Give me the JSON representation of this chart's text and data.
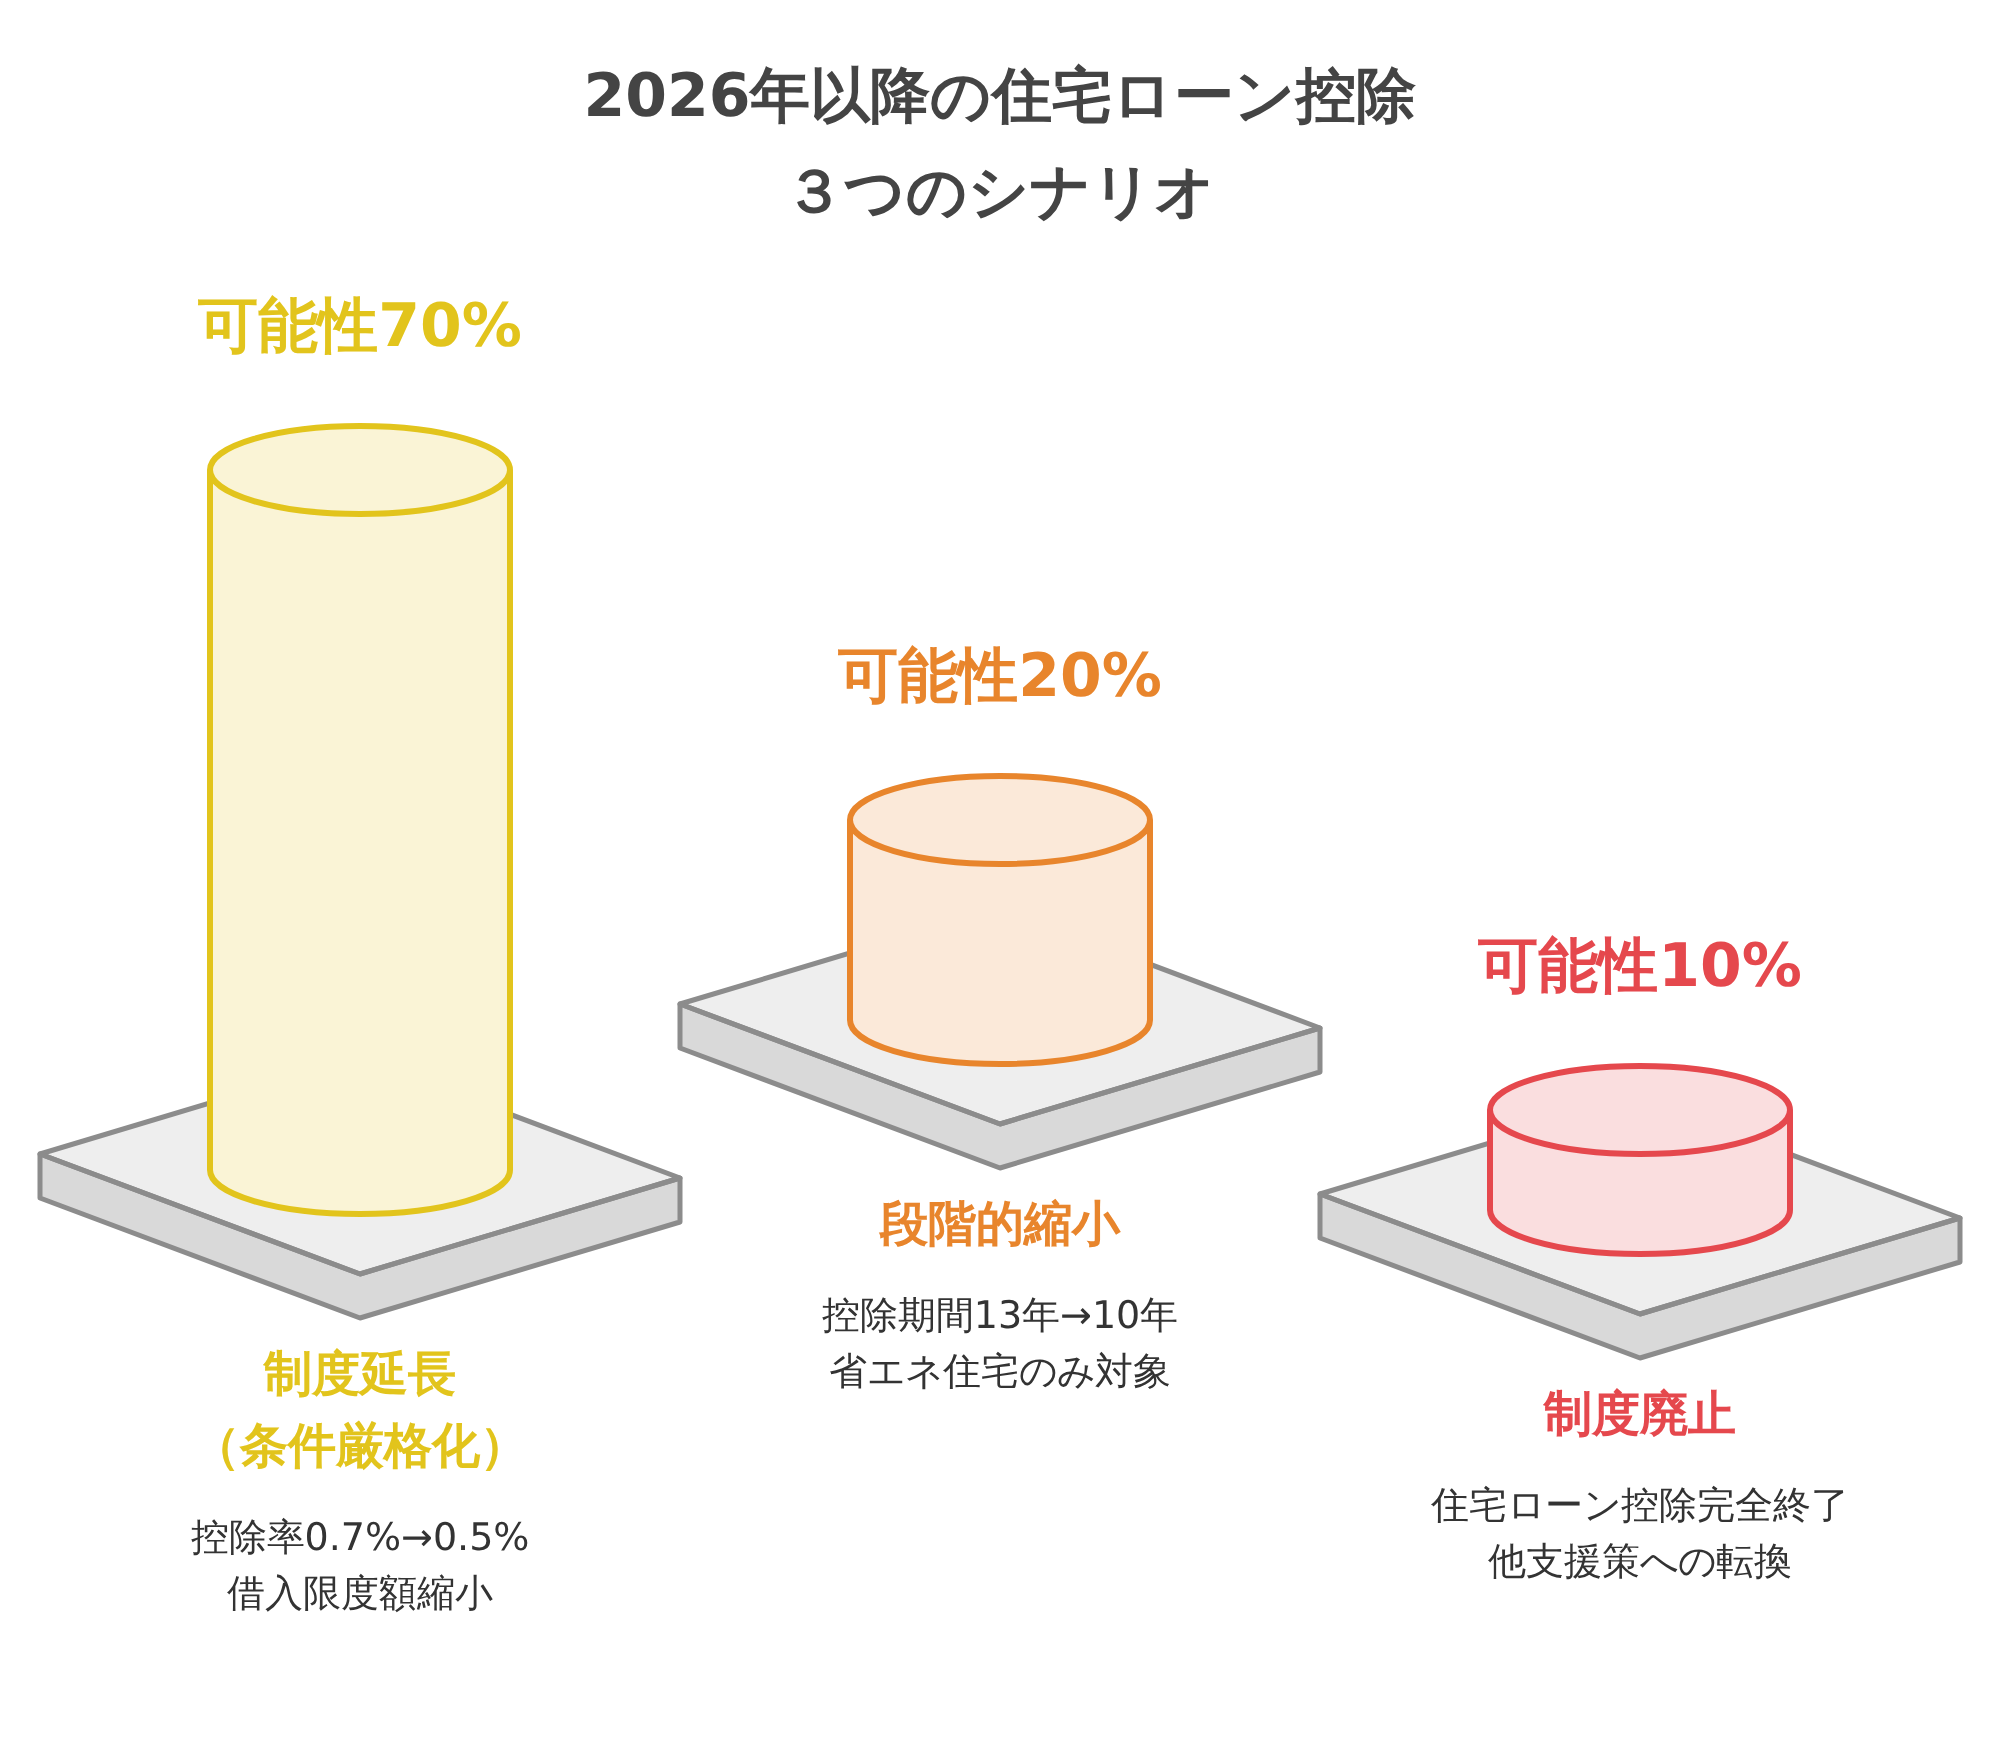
{
  "chart_data": {
    "type": "other",
    "title": "2026年以降の住宅ローン控除",
    "subtitle": "３つのシナリオ",
    "categories": [
      "制度延長（条件厳格化）",
      "段階的縮小",
      "制度廃止"
    ],
    "values": [
      70,
      20,
      10
    ],
    "colors": [
      "#e2c41c",
      "#e8852c",
      "#e5484d"
    ],
    "value_labels": [
      "可能性70%",
      "可能性20%",
      "可能性10%"
    ],
    "annotations": [
      "控除率0.7%→0.5%",
      "借入限度額縮小",
      "控除期間13年→10年",
      "省エネ住宅のみ対象",
      "住宅ローン控除完全終了",
      "他支援策への転換"
    ]
  }
}
